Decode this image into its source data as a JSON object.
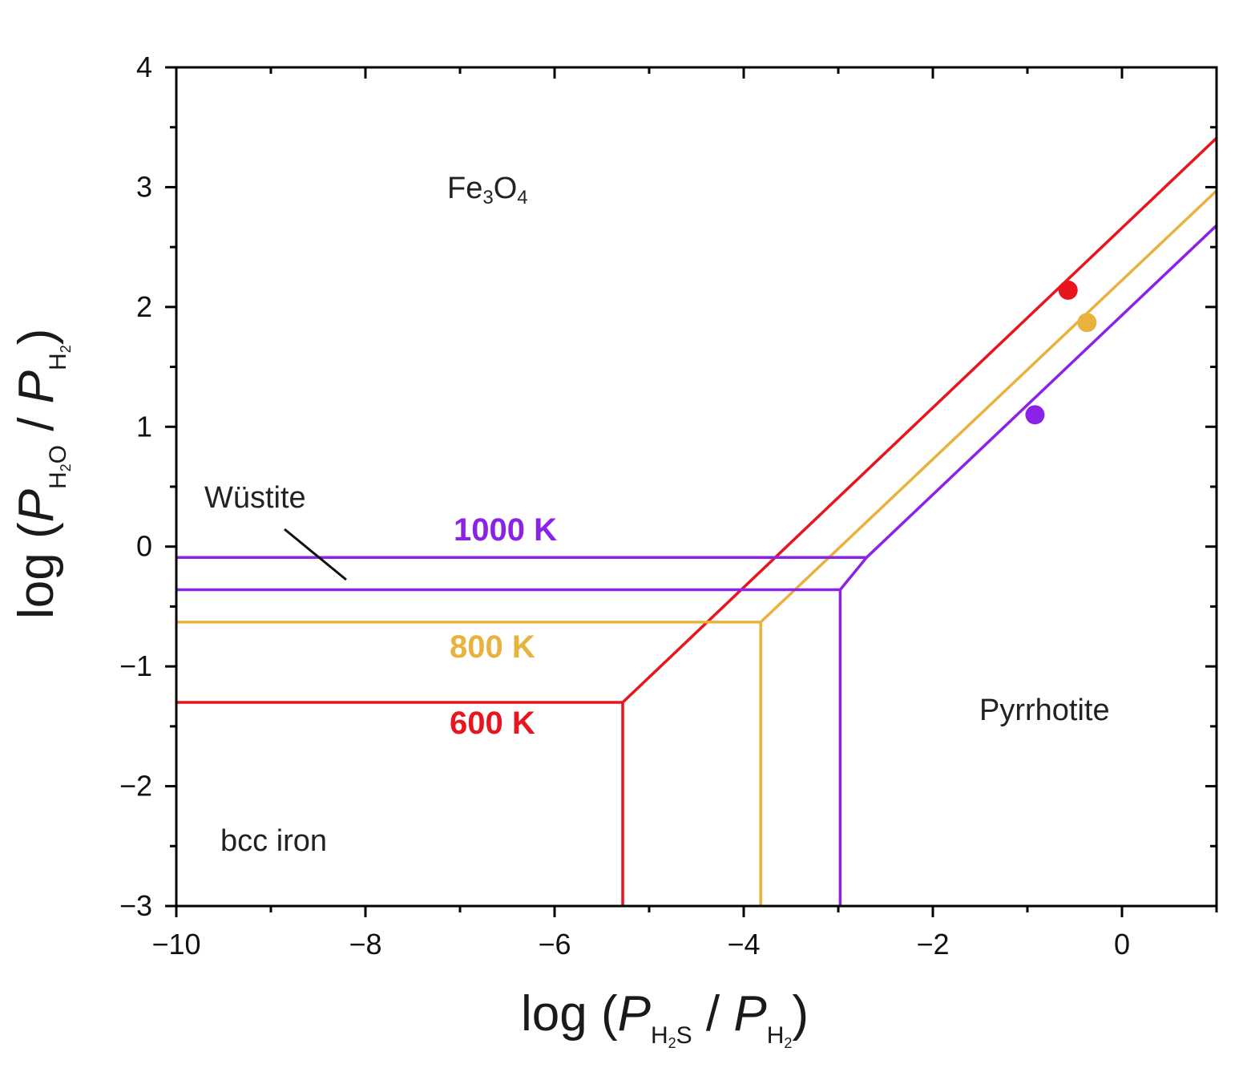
{
  "chart_data": {
    "type": "line",
    "xlabel": {
      "prefix": "log (",
      "p1": "P",
      "p1_sub_a": "H",
      "p1_sub_n": "2",
      "p1_sub_b": "S",
      "sep": " / ",
      "p2": "P",
      "p2_sub_a": "H",
      "p2_sub_n": "2",
      "suffix": ")"
    },
    "ylabel": {
      "prefix": "log (",
      "p1": "P",
      "p1_sub_a": "H",
      "p1_sub_n": "2",
      "p1_sub_b": "O",
      "sep": " / ",
      "p2": "P",
      "p2_sub_a": "H",
      "p2_sub_n": "2",
      "suffix": ")"
    },
    "xlim": [
      -10,
      1
    ],
    "ylim": [
      -3,
      4
    ],
    "xticks": [
      -10,
      -8,
      -6,
      -4,
      -2,
      0
    ],
    "xtick_labels": [
      "−10",
      "−8",
      "−6",
      "−4",
      "−2",
      "0"
    ],
    "yticks": [
      -3,
      -2,
      -1,
      0,
      1,
      2,
      3,
      4
    ],
    "ytick_labels": [
      "−3",
      "−2",
      "−1",
      "0",
      "1",
      "2",
      "3",
      "4"
    ],
    "grid": false,
    "colors": {
      "t600": "#e8141e",
      "t800": "#e8b23c",
      "t1000": "#8a22e8",
      "axis": "#000000"
    },
    "series": [
      {
        "name": "600 K",
        "color": "#e8141e",
        "paths": [
          [
            [
              -10,
              -1.3
            ],
            [
              -5.28,
              -1.3
            ],
            [
              1.0,
              3.41
            ]
          ],
          [
            [
              -5.28,
              -1.3
            ],
            [
              -5.28,
              -3.0
            ]
          ]
        ]
      },
      {
        "name": "800 K",
        "color": "#e8b23c",
        "paths": [
          [
            [
              -10,
              -0.63
            ],
            [
              -3.82,
              -0.63
            ],
            [
              1.0,
              2.97
            ]
          ],
          [
            [
              -3.82,
              -0.63
            ],
            [
              -3.82,
              -3.0
            ]
          ]
        ]
      },
      {
        "name": "1000 K",
        "color": "#8a22e8",
        "paths": [
          [
            [
              -10,
              -0.09
            ],
            [
              -2.7,
              -0.09
            ],
            [
              1.0,
              2.68
            ]
          ],
          [
            [
              -10,
              -0.36
            ],
            [
              -2.98,
              -0.36
            ],
            [
              -2.7,
              -0.09
            ]
          ],
          [
            [
              -2.98,
              -0.36
            ],
            [
              -2.98,
              -3.0
            ]
          ]
        ]
      }
    ],
    "points": [
      {
        "x": -0.57,
        "y": 2.14,
        "color": "#e8141e"
      },
      {
        "x": -0.37,
        "y": 1.87,
        "color": "#e8b23c"
      },
      {
        "x": -0.92,
        "y": 1.1,
        "color": "#8a22e8"
      }
    ],
    "annotations": {
      "fe3o4": {
        "main1": "Fe",
        "sub1": "3",
        "main2": "O",
        "sub2": "4"
      },
      "wustite": "Wüstite",
      "bcc_iron": "bcc iron",
      "pyrrhotite": "Pyrrhotite",
      "label_1000": "1000 K",
      "label_800": "800 K",
      "label_600": "600 K"
    }
  }
}
